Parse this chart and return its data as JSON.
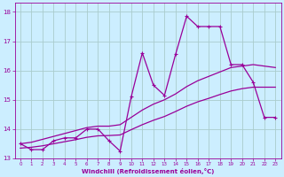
{
  "xlabel": "Windchill (Refroidissement éolien,°C)",
  "background_color": "#cceeff",
  "grid_color": "#aacccc",
  "line_color": "#990099",
  "x_values": [
    0,
    1,
    2,
    3,
    4,
    5,
    6,
    7,
    8,
    9,
    10,
    11,
    12,
    13,
    14,
    15,
    16,
    17,
    18,
    19,
    20,
    21,
    22,
    23
  ],
  "y_main": [
    13.5,
    13.3,
    13.3,
    13.6,
    13.7,
    13.7,
    14.0,
    14.0,
    13.6,
    13.25,
    15.1,
    16.6,
    15.5,
    15.15,
    16.55,
    17.85,
    17.5,
    17.5,
    17.5,
    16.2,
    16.2,
    15.6,
    14.4,
    14.4
  ],
  "y_trend1": [
    13.5,
    13.55,
    13.65,
    13.75,
    13.85,
    13.95,
    14.05,
    14.1,
    14.1,
    14.15,
    14.4,
    14.65,
    14.85,
    15.0,
    15.2,
    15.45,
    15.65,
    15.8,
    15.95,
    16.1,
    16.15,
    16.2,
    16.15,
    16.1
  ],
  "y_trend2": [
    13.35,
    13.38,
    13.43,
    13.5,
    13.57,
    13.64,
    13.72,
    13.77,
    13.78,
    13.8,
    13.98,
    14.15,
    14.3,
    14.43,
    14.6,
    14.78,
    14.93,
    15.05,
    15.18,
    15.3,
    15.38,
    15.43,
    15.43,
    15.43
  ],
  "ylim": [
    13.0,
    18.3
  ],
  "xlim": [
    -0.5,
    23.5
  ],
  "yticks": [
    13,
    14,
    15,
    16,
    17,
    18
  ],
  "xticks": [
    0,
    1,
    2,
    3,
    4,
    5,
    6,
    7,
    8,
    9,
    10,
    11,
    12,
    13,
    14,
    15,
    16,
    17,
    18,
    19,
    20,
    21,
    22,
    23
  ]
}
